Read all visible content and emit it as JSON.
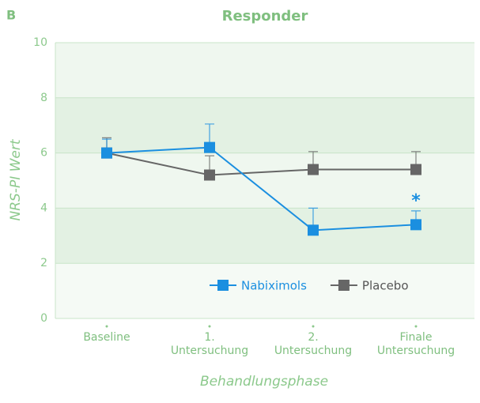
{
  "chart_data": {
    "type": "line",
    "panel_label": "B",
    "title": "Responder",
    "y_label": "NRS-PI Wert",
    "x_label": "Behandlungsphase",
    "categories": [
      [
        "Baseline"
      ],
      [
        "1.",
        "Untersuchung"
      ],
      [
        "2.",
        "Untersuchung"
      ],
      [
        "Finale",
        "Untersuchung"
      ]
    ],
    "series": [
      {
        "name": "Nabiximols",
        "color": "#1b8fe0",
        "values": [
          6.0,
          6.2,
          3.2,
          3.4
        ],
        "errors": [
          0.5,
          0.85,
          0.8,
          0.5
        ]
      },
      {
        "name": "Placebo",
        "color": "#666666",
        "values": [
          6.0,
          5.2,
          5.4,
          5.4
        ],
        "errors": [
          0.55,
          0.7,
          0.65,
          0.65
        ]
      }
    ],
    "annotation": "*",
    "ylim": [
      0,
      10
    ],
    "yticks": [
      0,
      2,
      4,
      6,
      8,
      10
    ],
    "legend": "bottom"
  }
}
